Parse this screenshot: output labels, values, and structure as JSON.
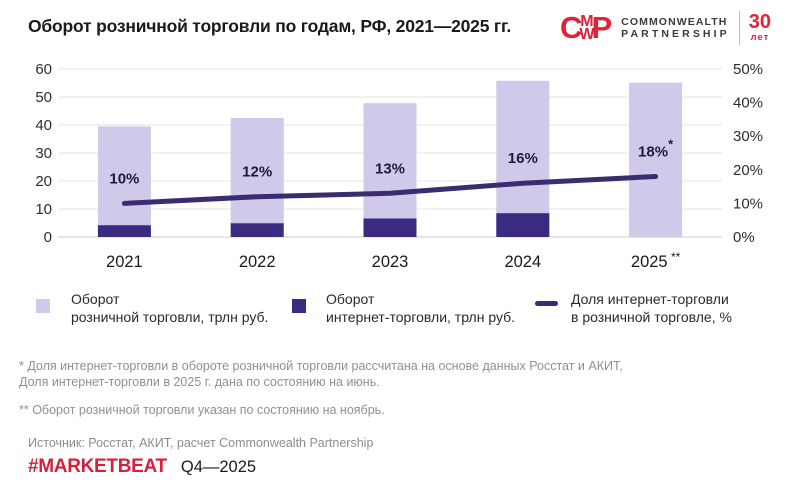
{
  "header": {
    "title": "Оборот розничной торговли по годам, РФ, 2021—2025 гг.",
    "logo": {
      "mark_letters": {
        "c": "C",
        "m": "M",
        "w": "W",
        "p": "P"
      },
      "name_line1": "COMMONWEALTH",
      "name_line2": "PARTNERSHIP",
      "anniversary_number": "30",
      "anniversary_unit": "лет"
    }
  },
  "chart_data": {
    "type": "bar",
    "categories": [
      "2021",
      "2022",
      "2023",
      "2024",
      "2025"
    ],
    "category_suffixes": [
      "",
      "",
      "",
      "",
      "**"
    ],
    "series": [
      {
        "name": "Оборот розничной торговли, трлн руб.",
        "kind": "bar",
        "color_key": "light_purple",
        "values": [
          39.5,
          42.5,
          47.8,
          55.8,
          55.1
        ]
      },
      {
        "name": "Оборот интернет-торговли, трлн руб.",
        "kind": "bar",
        "color_key": "dark_purple",
        "values": [
          4.2,
          4.9,
          6.6,
          8.5,
          0
        ]
      },
      {
        "name": "Доля интернет-торговли в розничной торговле, %",
        "kind": "line",
        "axis": "right",
        "color_key": "line_purple",
        "values": [
          10,
          12,
          13,
          16,
          18
        ]
      }
    ],
    "point_labels": [
      "10%",
      "12%",
      "13%",
      "16%",
      "18%"
    ],
    "point_label_suffixes": [
      "",
      "",
      "",
      "",
      "*"
    ],
    "left_axis": {
      "min": 0,
      "max": 60,
      "step": 10,
      "ticks": [
        "0",
        "10",
        "20",
        "30",
        "40",
        "50",
        "60"
      ]
    },
    "right_axis": {
      "min": 0,
      "max": 50,
      "step": 10,
      "ticks": [
        "0%",
        "10%",
        "20%",
        "30%",
        "40%",
        "50%"
      ]
    },
    "grid": true,
    "legend_position": "bottom",
    "title": "Оборот розничной торговли по годам, РФ, 2021—2025 гг."
  },
  "legend": {
    "items": [
      {
        "line1": "Оборот",
        "line2": "розничной торговли, трлн руб."
      },
      {
        "line1": "Оборот",
        "line2": "интернет-торговли, трлн руб."
      },
      {
        "line1": "Доля интернет-торговли",
        "line2": "в розничной торговле, %"
      }
    ]
  },
  "footnotes": {
    "first_line1": "* Доля интернет-торговли в обороте розничной торговли рассчитана на основе данных Росстат и АКИТ,",
    "first_line2": "Доля интернет-торговли в 2025 г.  дана по состоянию на июнь.",
    "second": "** Оборот розничной торговли указан по состоянию на ноябрь."
  },
  "source": "Источник: Росстат, АКИТ, расчет Commonwealth Partnership",
  "footer": {
    "hashtag": "#MARKETBEAT",
    "period": "Q4—2025"
  },
  "colors": {
    "light_purple": "#d1c9ea",
    "dark_purple": "#3a2b80",
    "line_purple": "#3b2b70",
    "grid": "#eaeaea",
    "baseline": "#d8d8d8",
    "brand_red": "#e12339",
    "hashtag_red": "#d51f3c",
    "text_dark": "#1a1a1a",
    "text_gray": "#909090",
    "axis_text": "#2d2d2d",
    "bar_label_navy": "#1b1b3e"
  }
}
